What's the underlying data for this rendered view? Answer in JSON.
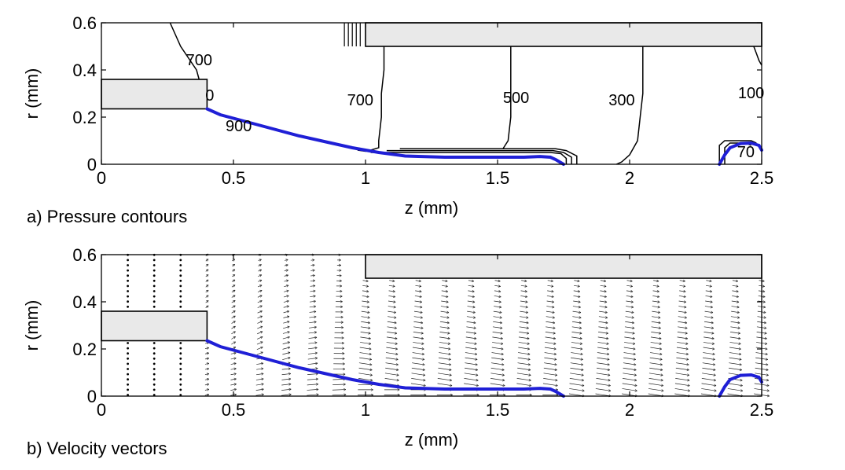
{
  "colors": {
    "interface": "#1f1fd6",
    "wall_fill": "#e9e9e9",
    "line": "#000000"
  },
  "chart_data": [
    {
      "type": "line",
      "caption": "a) Pressure contours",
      "xlabel": "z (mm)",
      "ylabel": "r (mm)",
      "xlim": [
        0,
        2.5
      ],
      "ylim": [
        0,
        0.6
      ],
      "xticks": [
        "0",
        "0.5",
        "1",
        "1.5",
        "2",
        "2.5"
      ],
      "yticks": [
        "0",
        "0.2",
        "0.4",
        "0.6"
      ],
      "contour_labels": [
        {
          "text": "700",
          "z": 0.37,
          "r": 0.42
        },
        {
          "text": "0",
          "z": 0.41,
          "r": 0.27
        },
        {
          "text": "900",
          "z": 0.52,
          "r": 0.14
        },
        {
          "text": "700",
          "z": 0.98,
          "r": 0.25
        },
        {
          "text": "500",
          "z": 1.57,
          "r": 0.26
        },
        {
          "text": "300",
          "z": 1.97,
          "r": 0.25
        },
        {
          "text": "100",
          "z": 2.46,
          "r": 0.28
        },
        {
          "text": "70",
          "z": 2.44,
          "r": 0.03
        }
      ],
      "walls": [
        {
          "z": [
            0,
            0.4
          ],
          "r": [
            0.235,
            0.36
          ]
        },
        {
          "z": [
            1.0,
            2.5
          ],
          "r": [
            0.5,
            0.6
          ]
        }
      ],
      "contours": [
        {
          "z": [
            0.26,
            0.28,
            0.3,
            0.33,
            0.36,
            0.37
          ],
          "r": [
            0.6,
            0.55,
            0.5,
            0.45,
            0.4,
            0.36
          ]
        },
        {
          "z": [
            1.07,
            1.07,
            1.06,
            1.06,
            1.05,
            1.05,
            1.02,
            1.0,
            0.97
          ],
          "r": [
            0.5,
            0.4,
            0.3,
            0.2,
            0.1,
            0.07,
            0.06,
            0.055,
            0.06
          ]
        },
        {
          "z": [
            1.55,
            1.55,
            1.55,
            1.55,
            1.54,
            1.52
          ],
          "r": [
            0.5,
            0.4,
            0.3,
            0.2,
            0.1,
            0.065
          ]
        },
        {
          "z": [
            2.05,
            2.05,
            2.05,
            2.04,
            2.03,
            2.0,
            1.97,
            1.95
          ],
          "r": [
            0.5,
            0.4,
            0.3,
            0.2,
            0.1,
            0.04,
            0.01,
            0.0
          ]
        },
        {
          "z": [
            2.47,
            2.48,
            2.49,
            2.5
          ],
          "r": [
            0.5,
            0.47,
            0.44,
            0.42
          ]
        },
        {
          "z": [
            1.02,
            1.7,
            1.74,
            1.76,
            1.76
          ],
          "r": [
            0.05,
            0.05,
            0.045,
            0.025,
            0.0
          ]
        },
        {
          "z": [
            1.08,
            1.71,
            1.75,
            1.78,
            1.78
          ],
          "r": [
            0.058,
            0.058,
            0.05,
            0.03,
            0.0
          ]
        },
        {
          "z": [
            1.13,
            1.72,
            1.76,
            1.8,
            1.8
          ],
          "r": [
            0.066,
            0.066,
            0.058,
            0.035,
            0.0
          ]
        },
        {
          "z": [
            2.34,
            2.34,
            2.36,
            2.46,
            2.48
          ],
          "r": [
            0.0,
            0.08,
            0.1,
            0.1,
            0.09
          ]
        },
        {
          "z": [
            2.36,
            2.36,
            2.38,
            2.44,
            2.46
          ],
          "r": [
            0.0,
            0.07,
            0.09,
            0.09,
            0.08
          ]
        }
      ],
      "interface": {
        "segments": [
          {
            "z": [
              0.4,
              0.45,
              0.55,
              0.65,
              0.75,
              0.85,
              0.95,
              1.05,
              1.15,
              1.3,
              1.45,
              1.6,
              1.66,
              1.7,
              1.72,
              1.75
            ],
            "r": [
              0.235,
              0.21,
              0.18,
              0.15,
              0.12,
              0.095,
              0.07,
              0.05,
              0.035,
              0.03,
              0.03,
              0.03,
              0.033,
              0.03,
              0.02,
              0.0
            ]
          },
          {
            "z": [
              2.34,
              2.36,
              2.38,
              2.42,
              2.46,
              2.49,
              2.5
            ],
            "r": [
              0.0,
              0.04,
              0.07,
              0.088,
              0.09,
              0.08,
              0.06
            ]
          }
        ]
      }
    },
    {
      "type": "quiver",
      "caption": "b) Velocity vectors",
      "xlabel": "z (mm)",
      "ylabel": "r (mm)",
      "xlim": [
        0,
        2.5
      ],
      "ylim": [
        0,
        0.6
      ],
      "xticks": [
        "0",
        "0.5",
        "1",
        "1.5",
        "2",
        "2.5"
      ],
      "yticks": [
        "0",
        "0.2",
        "0.4",
        "0.6"
      ],
      "walls": [
        {
          "z": [
            0,
            0.4
          ],
          "r": [
            0.235,
            0.36
          ]
        },
        {
          "z": [
            1.0,
            2.5
          ],
          "r": [
            0.5,
            0.6
          ]
        }
      ],
      "interface": {
        "segments": [
          {
            "z": [
              0.4,
              0.45,
              0.55,
              0.65,
              0.75,
              0.85,
              0.95,
              1.05,
              1.15,
              1.3,
              1.45,
              1.6,
              1.66,
              1.7,
              1.72,
              1.75
            ],
            "r": [
              0.235,
              0.21,
              0.18,
              0.15,
              0.12,
              0.095,
              0.07,
              0.05,
              0.035,
              0.03,
              0.03,
              0.03,
              0.033,
              0.03,
              0.02,
              0.0
            ]
          },
          {
            "z": [
              2.34,
              2.36,
              2.38,
              2.42,
              2.46,
              2.49,
              2.5
            ],
            "r": [
              0.0,
              0.04,
              0.07,
              0.088,
              0.09,
              0.08,
              0.06
            ]
          }
        ]
      },
      "vector_columns_z": [
        0.1,
        0.2,
        0.3,
        0.4,
        0.5,
        0.6,
        0.7,
        0.8,
        0.9,
        1.0,
        1.1,
        1.2,
        1.3,
        1.4,
        1.5,
        1.6,
        1.7,
        1.8,
        1.9,
        2.0,
        2.1,
        2.2,
        2.3,
        2.4,
        2.5
      ]
    }
  ]
}
